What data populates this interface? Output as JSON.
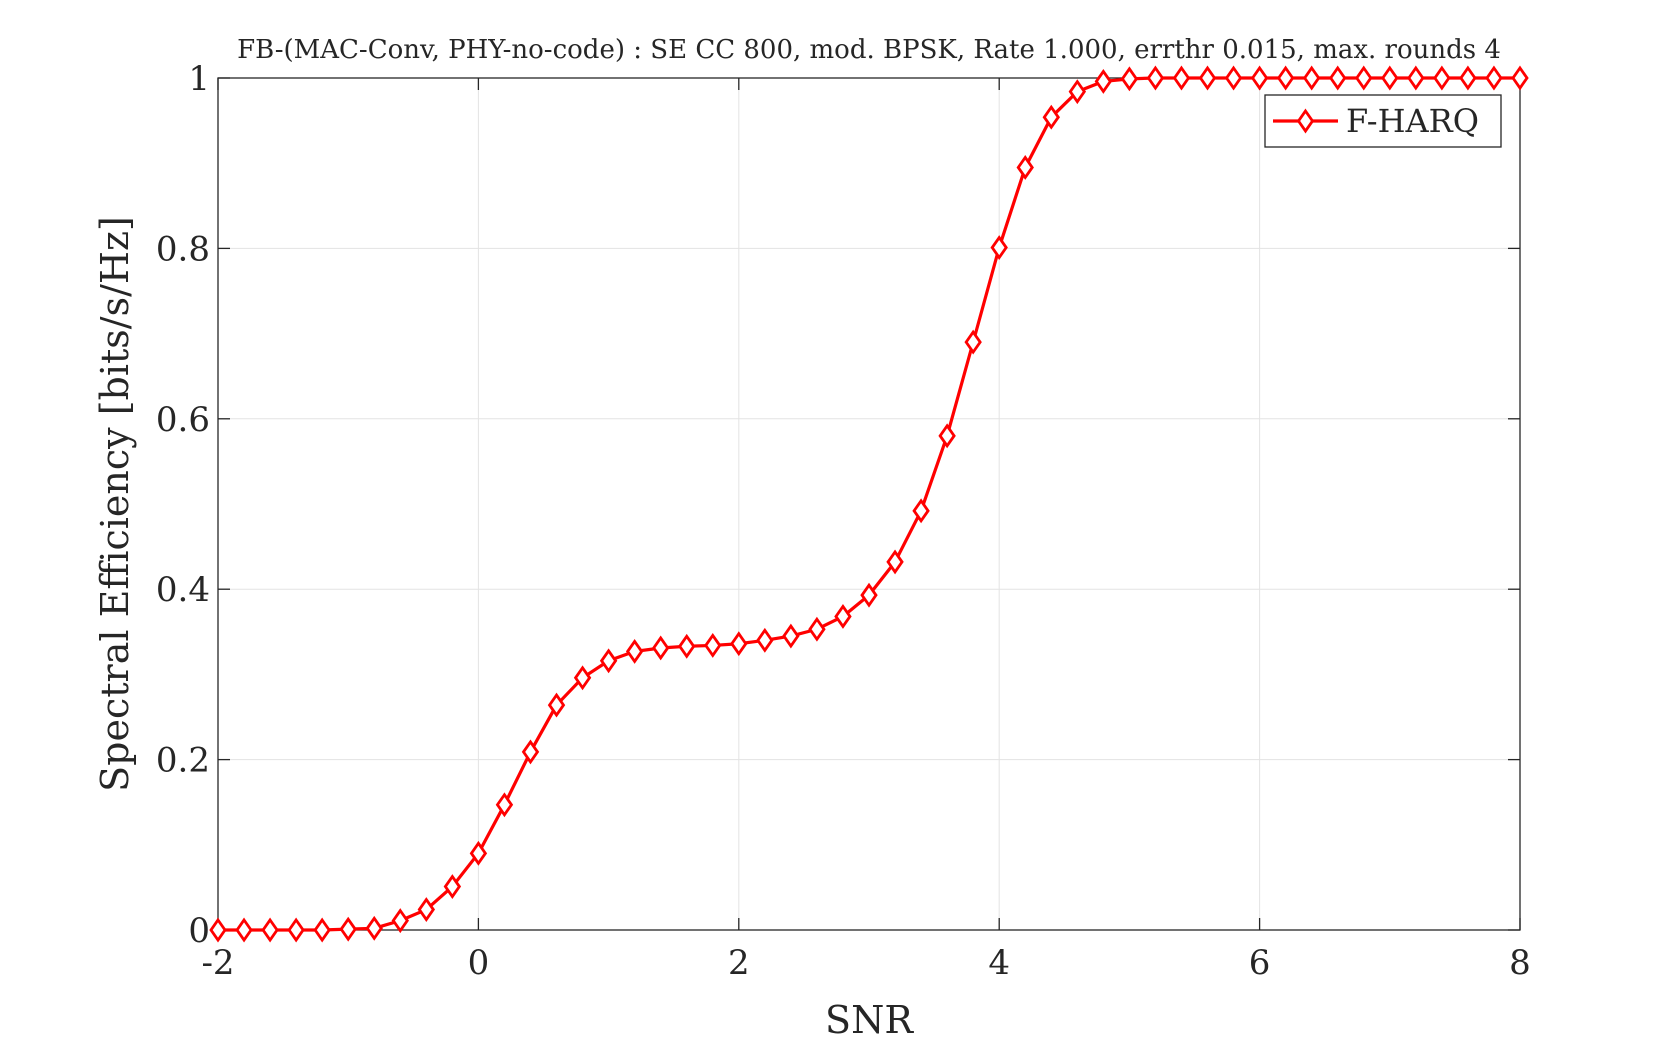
{
  "chart_data": {
    "type": "line",
    "title": "FB-(MAC-Conv, PHY-no-code) : SE CC 800, mod. BPSK, Rate 1.000, errthr 0.015, max. rounds 4",
    "xlabel": "SNR",
    "ylabel": "Spectral Efficiency [bits/s/Hz]",
    "xlim": [
      -2,
      8
    ],
    "ylim": [
      0,
      1
    ],
    "xticks": [
      -2,
      0,
      2,
      4,
      6,
      8
    ],
    "xtick_labels": [
      "-2",
      "0",
      "2",
      "4",
      "6",
      "8"
    ],
    "yticks": [
      0,
      0.2,
      0.4,
      0.6,
      0.8,
      1
    ],
    "ytick_labels": [
      "0",
      "0.2",
      "0.4",
      "0.6",
      "0.8",
      "1"
    ],
    "grid": true,
    "legend_position": "top-right",
    "series": [
      {
        "name": "F-HARQ",
        "color": "#ff0000",
        "marker": "diamond",
        "x": [
          -2.0,
          -1.8,
          -1.6,
          -1.4,
          -1.2,
          -1.0,
          -0.8,
          -0.6,
          -0.4,
          -0.2,
          0.0,
          0.2,
          0.4,
          0.6,
          0.8,
          1.0,
          1.2,
          1.4,
          1.6,
          1.8,
          2.0,
          2.2,
          2.4,
          2.6,
          2.8,
          3.0,
          3.2,
          3.4,
          3.6,
          3.8,
          4.0,
          4.2,
          4.4,
          4.6,
          4.8,
          5.0,
          5.2,
          5.4,
          5.6,
          5.8,
          6.0,
          6.2,
          6.4,
          6.6,
          6.8,
          7.0,
          7.2,
          7.4,
          7.6,
          7.8,
          8.0
        ],
        "y": [
          0.0,
          0.0,
          0.0,
          0.0,
          0.0,
          0.001,
          0.002,
          0.011,
          0.024,
          0.051,
          0.09,
          0.147,
          0.209,
          0.264,
          0.296,
          0.316,
          0.327,
          0.331,
          0.333,
          0.334,
          0.336,
          0.34,
          0.345,
          0.353,
          0.368,
          0.393,
          0.432,
          0.492,
          0.58,
          0.69,
          0.801,
          0.895,
          0.954,
          0.984,
          0.996,
          0.999,
          1.0,
          1.0,
          1.0,
          1.0,
          1.0,
          1.0,
          1.0,
          1.0,
          1.0,
          1.0,
          1.0,
          1.0,
          1.0,
          1.0,
          1.0
        ]
      }
    ]
  }
}
